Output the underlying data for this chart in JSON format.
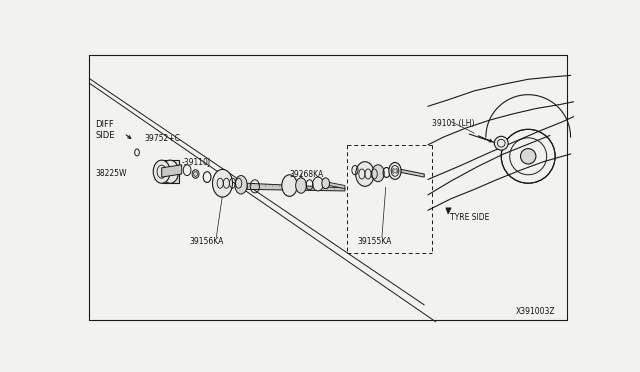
{
  "bg_color": "#f2f2ee",
  "line_color": "#1a1a1a",
  "text_color": "#111111",
  "part_fill": "#e8e8e4",
  "part_fill2": "#d8d8d4",
  "shaft_fill": "#c8c8c4",
  "labels": {
    "diff_side": "DIFF\nSIDE",
    "tyre_side": "TYRE SIDE",
    "part_39101": "39101 (LH)",
    "part_39752": "39752+C",
    "part_39110": "-39110J",
    "part_38225": "38225W",
    "part_39156": "39156KA",
    "part_39268": "39268KA",
    "part_39155": "39155KA",
    "catalog_no": "X391003Z"
  },
  "fs": 6.0,
  "fs_small": 5.5
}
